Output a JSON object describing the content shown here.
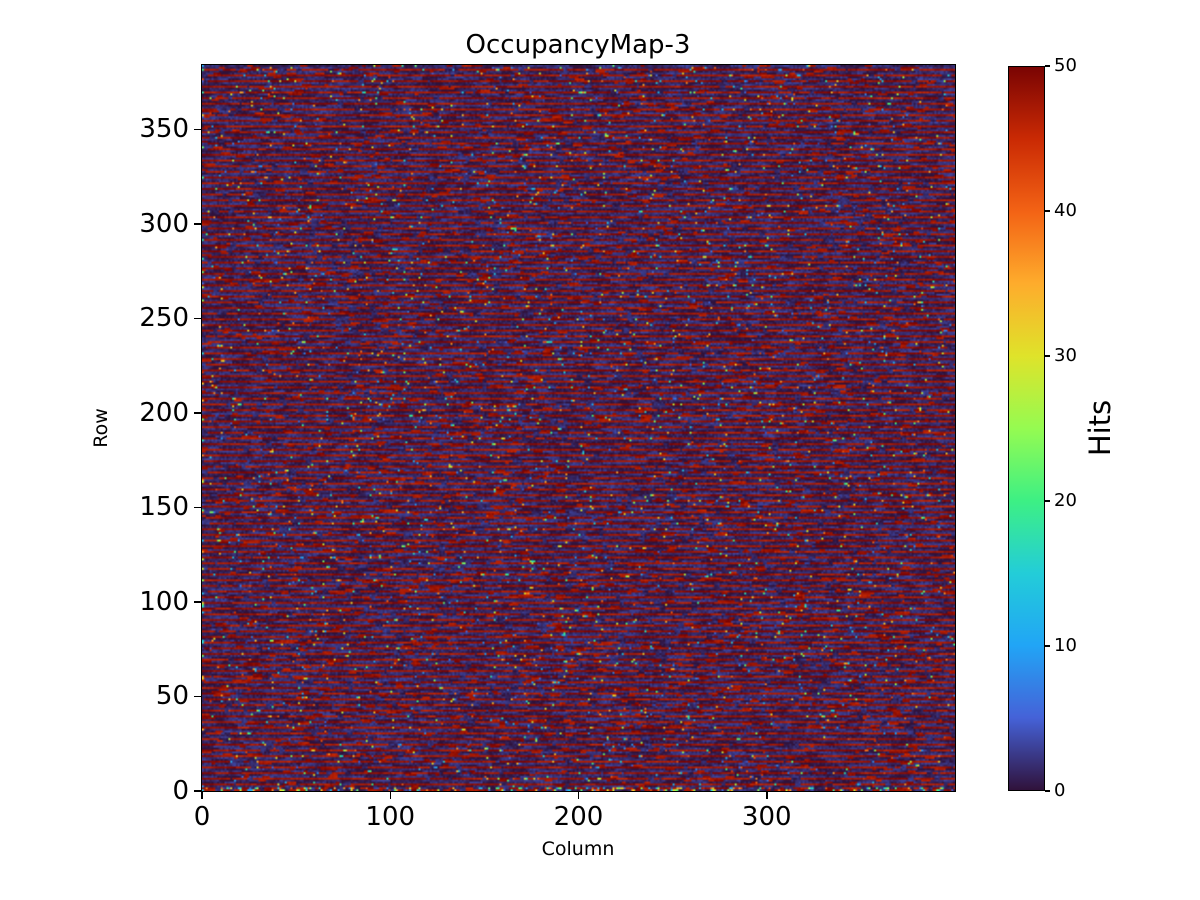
{
  "chart_data": {
    "type": "heatmap",
    "title": "OccupancyMap-3",
    "xlabel": "Column",
    "ylabel": "Row",
    "colorbar_label": "Hits",
    "xlim": [
      0,
      400
    ],
    "ylim": [
      0,
      384
    ],
    "clim": [
      0,
      50
    ],
    "x_ticks": [
      0,
      100,
      200,
      300
    ],
    "y_ticks": [
      0,
      50,
      100,
      150,
      200,
      250,
      300,
      350
    ],
    "colorbar_ticks": [
      0,
      10,
      20,
      30,
      40,
      50
    ],
    "grid": false,
    "legend": null,
    "background_color": "#ffffff",
    "colormap": {
      "name": "turbo",
      "stops": [
        {
          "t": 0.0,
          "color": "#30123b"
        },
        {
          "t": 0.1,
          "color": "#4562d8"
        },
        {
          "t": 0.2,
          "color": "#21a5f6"
        },
        {
          "t": 0.3,
          "color": "#23cdd8"
        },
        {
          "t": 0.4,
          "color": "#3df084"
        },
        {
          "t": 0.5,
          "color": "#95fb51"
        },
        {
          "t": 0.6,
          "color": "#dfe32a"
        },
        {
          "t": 0.7,
          "color": "#feac2c"
        },
        {
          "t": 0.8,
          "color": "#f36315"
        },
        {
          "t": 0.9,
          "color": "#ca2a04"
        },
        {
          "t": 1.0,
          "color": "#7a0403"
        }
      ]
    },
    "data_summary": "400 columns x 384 rows pixel-occupancy map. Values are bimodal: most pixels are either near 0 hits (dark purple) or 46-50 hits (dark red). Roughly every 3rd row is a 'hot' row drawn as dashed dark-red runs with short dark gaps; the other rows are mostly dark with occasional short red dashes. Sparse isolated pixels of intermediate values (4-46 hits) appear as blue/cyan/green/yellow/orange dots scattered uniformly. The bottom one or two rows are densely speckled with random intermediate values.",
    "generation": {
      "seed": 1337,
      "rows": 384,
      "cols": 400,
      "hot_row_period": 3,
      "noisy_bottom_rows": 2,
      "hot_row": {
        "red_p": 0.7,
        "gap_p": 0.17,
        "noise_p": 0.13,
        "red_run": [
          3,
          9
        ],
        "gap_run": [
          1,
          4
        ],
        "noise_run": [
          1,
          2
        ]
      },
      "cold_row": {
        "dark_p": 0.8,
        "red_p": 0.11,
        "noise_p": 0.09,
        "dark_run": [
          4,
          11
        ],
        "red_run": [
          2,
          6
        ],
        "noise_run": [
          1,
          2
        ]
      },
      "bottom_row": {
        "dark_p": 0.35,
        "red_p": 0.25,
        "noise_p": 0.4
      },
      "red_value_range": [
        46,
        50
      ],
      "dark_value_range": [
        0,
        2.5
      ],
      "noise_value_range": [
        4,
        46
      ]
    }
  }
}
